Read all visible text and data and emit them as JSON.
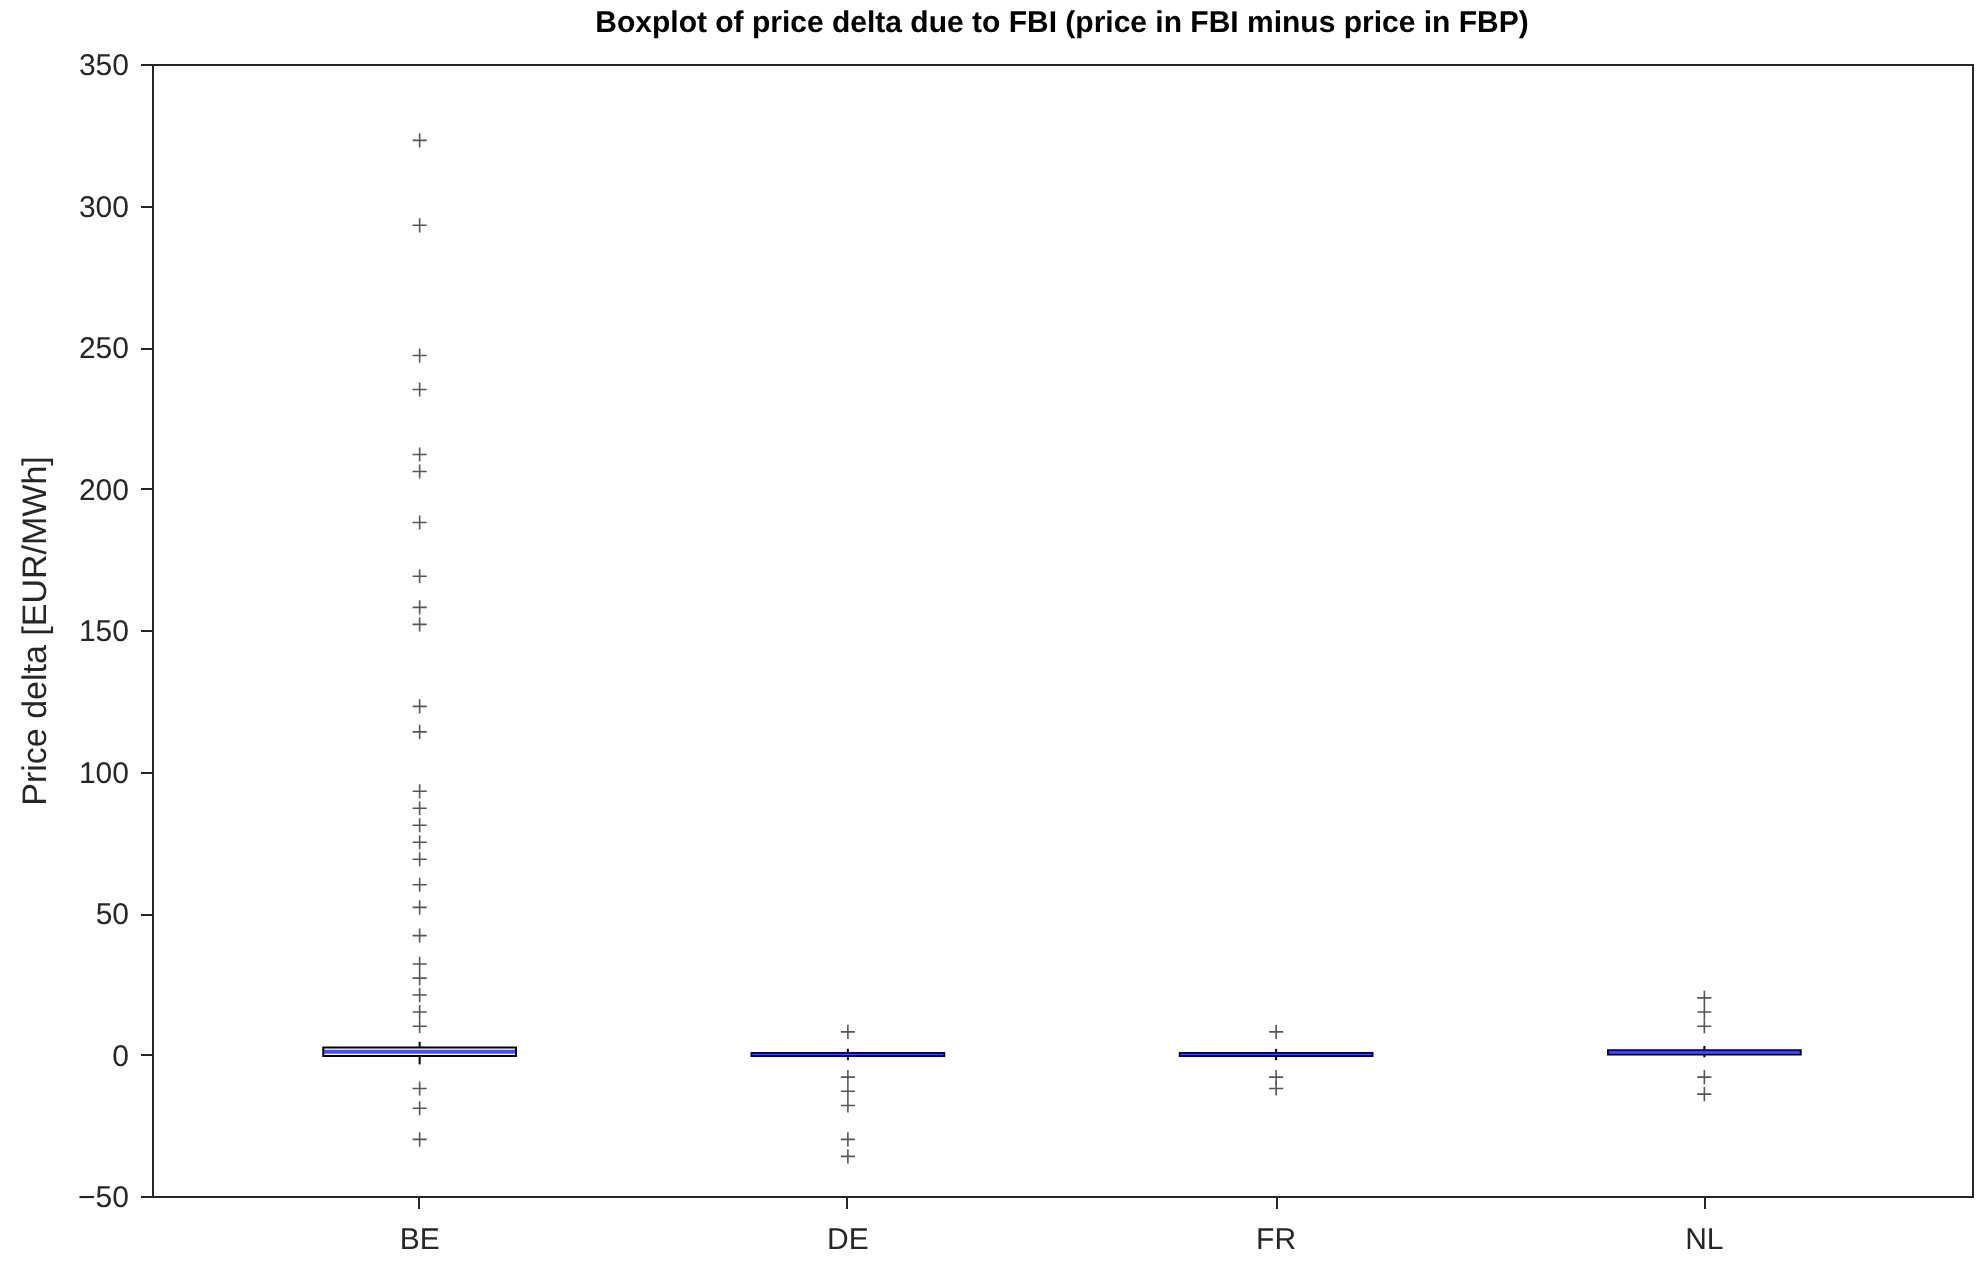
{
  "chart_data": {
    "type": "box",
    "title": "Boxplot of price delta due to FBI (price in FBI minus price in FBP)",
    "ylabel": "Price delta [EUR/MWh]",
    "categories": [
      "BE",
      "DE",
      "FR",
      "NL"
    ],
    "ylim": [
      -50,
      350
    ],
    "yticks": [
      -50,
      0,
      50,
      100,
      150,
      200,
      250,
      300,
      350
    ],
    "grid": false,
    "marker": "cross",
    "boxes": [
      {
        "low": -3.5,
        "q1": -0.5,
        "median": 1,
        "q3": 2.5,
        "high": 4.5,
        "outliers": [
          -30,
          -19,
          -12,
          10,
          15,
          21,
          27,
          32,
          42,
          52,
          60,
          69,
          75,
          81,
          87,
          93,
          114,
          123,
          152,
          158,
          169,
          188,
          206,
          212,
          235,
          247,
          293,
          323
        ]
      },
      {
        "low": -2,
        "q1": -0.5,
        "median": 0,
        "q3": 0.5,
        "high": 2,
        "outliers": [
          -36,
          -30,
          -18,
          -13,
          -8,
          8
        ]
      },
      {
        "low": -2,
        "q1": -0.5,
        "median": 0,
        "q3": 0.5,
        "high": 2,
        "outliers": [
          -12,
          -8,
          8
        ]
      },
      {
        "low": -1,
        "q1": 0,
        "median": 1,
        "q3": 1.5,
        "high": 3,
        "outliers": [
          -14,
          -8,
          10,
          15,
          20
        ]
      }
    ]
  }
}
